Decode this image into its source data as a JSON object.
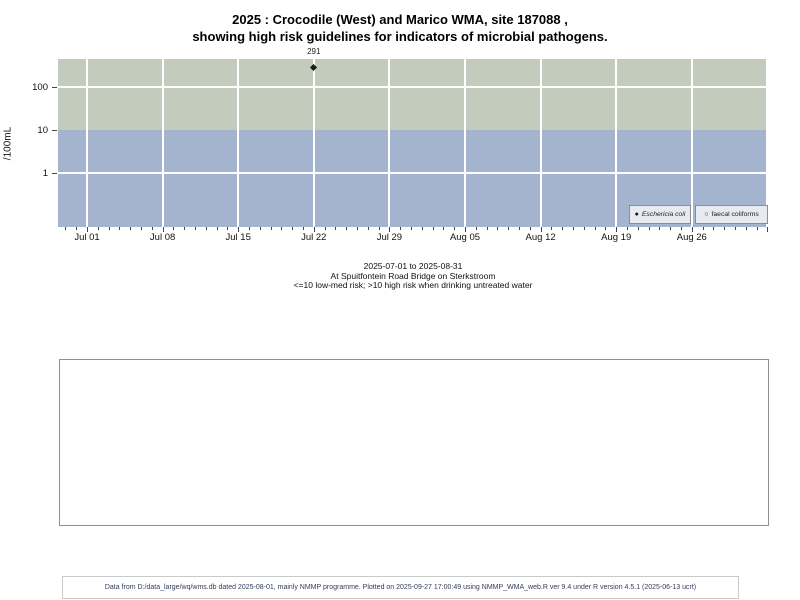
{
  "title": {
    "line1": "2025 : Crocodile (West) and Marico WMA, site 187088 ,",
    "line2": "showing high risk guidelines for indicators of microbial pathogens."
  },
  "chart_data": {
    "type": "scatter",
    "title": "2025 : Crocodile (West) and Marico WMA, site 187088, showing high risk guidelines for indicators of microbial pathogens.",
    "ylabel": "/100mL",
    "y_scale": "log",
    "ylim": [
      0.06,
      450
    ],
    "grid": true,
    "x_ticks": [
      {
        "day": 0,
        "label": "Jul 01"
      },
      {
        "day": 7,
        "label": "Jul 08"
      },
      {
        "day": 14,
        "label": "Jul 15"
      },
      {
        "day": 21,
        "label": "Jul 22"
      },
      {
        "day": 28,
        "label": "Jul 29"
      },
      {
        "day": 35,
        "label": "Aug 05"
      },
      {
        "day": 42,
        "label": "Aug 12"
      },
      {
        "day": 49,
        "label": "Aug 19"
      },
      {
        "day": 56,
        "label": "Aug 26"
      },
      {
        "day": 63,
        "label": ""
      }
    ],
    "minor_tick_days": [
      -2,
      63
    ],
    "y_ticks": [
      {
        "value": 100,
        "label": "100"
      },
      {
        "value": 10,
        "label": "10"
      },
      {
        "value": 1,
        "label": "1"
      }
    ],
    "threshold": 10,
    "zones": [
      {
        "name": "high-risk",
        "condition": ">10",
        "color": "#c3cbbd"
      },
      {
        "name": "low-med-risk",
        "condition": "<=10",
        "color": "#a4b4ce"
      }
    ],
    "series": [
      {
        "name": "Eschericia coli",
        "marker": "filled-diamond",
        "points": [
          {
            "day": 21,
            "date": "2025-07-22",
            "value": 291,
            "label": "291"
          }
        ]
      },
      {
        "name": "faecal coliforms",
        "marker": "open-circle",
        "points": []
      }
    ],
    "legend_position": "bottom-right"
  },
  "legend": {
    "items": [
      {
        "symbol": "●",
        "label": "Eschericia coli",
        "italic": true
      },
      {
        "symbol": "○",
        "label": "faecal coliforms",
        "italic": false
      }
    ]
  },
  "caption": {
    "line1": "2025-07-01 to 2025-08-31",
    "line2": "At Spuitfontein Road Bridge on Sterkstroom",
    "line3": "<=10 low-med risk; >10 high risk when drinking untreated water"
  },
  "footer": "Data from D:/data_large/wq/wms.db dated 2025-08-01, mainly NMMP programme. Plotted on 2025-09-27 17:00:49 using NMMP_WMA_web.R ver 9.4 under R version 4.5.1 (2025-06-13 ucrt)"
}
